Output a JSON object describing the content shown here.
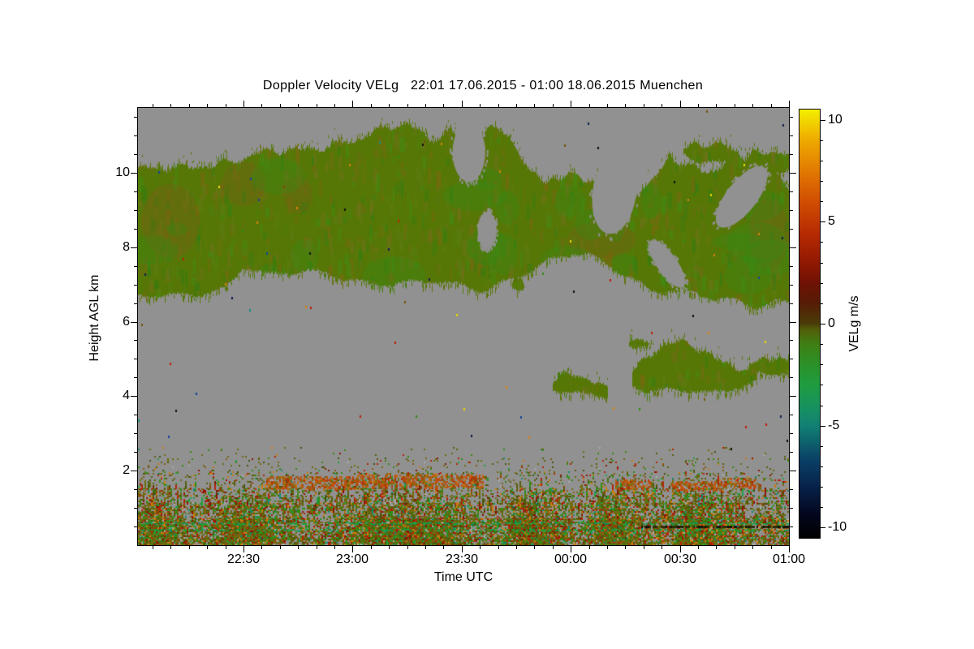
{
  "title": "Doppler Velocity VELg   22:01 17.06.2015 - 01:00 18.06.2015 Muenchen",
  "axes": {
    "x": {
      "label": "Time UTC",
      "range_min": [
        0,
        179
      ],
      "major_ticks": [
        {
          "min": 29,
          "label": "22:30"
        },
        {
          "min": 59,
          "label": "23:00"
        },
        {
          "min": 89,
          "label": "23:30"
        },
        {
          "min": 119,
          "label": "00:00"
        },
        {
          "min": 149,
          "label": "00:30"
        },
        {
          "min": 179,
          "label": "01:00"
        }
      ],
      "minor_step_min": 5,
      "minor_offset_min": 4
    },
    "y": {
      "label": "Height AGL km",
      "range_km": [
        0,
        11.74
      ],
      "major_ticks": [
        {
          "km": 2,
          "label": "2"
        },
        {
          "km": 4,
          "label": "4"
        },
        {
          "km": 6,
          "label": "6"
        },
        {
          "km": 8,
          "label": "8"
        },
        {
          "km": 10,
          "label": "10"
        }
      ],
      "minor_step_km": 0.5
    }
  },
  "colorbar": {
    "label": "VELg m/s",
    "range": [
      -10.5,
      10.5
    ],
    "major_ticks": [
      {
        "value": 10,
        "label": "10"
      },
      {
        "value": 5,
        "label": "5"
      },
      {
        "value": 0,
        "label": "0"
      },
      {
        "value": -5,
        "label": "-5"
      },
      {
        "value": -10,
        "label": "-10"
      }
    ],
    "minor_step": 1,
    "gradient_stops": [
      [
        -10.5,
        "#000000"
      ],
      [
        -9.3,
        "#03071f"
      ],
      [
        -8,
        "#07224a"
      ],
      [
        -6.7,
        "#0a3f66"
      ],
      [
        -5.5,
        "#0f6d6e"
      ],
      [
        -5,
        "#128074"
      ],
      [
        -4,
        "#17945c"
      ],
      [
        -3,
        "#1f9c40"
      ],
      [
        -2,
        "#2b9128"
      ],
      [
        -1,
        "#3f7f14"
      ],
      [
        -0.3,
        "#525f0a"
      ],
      [
        0,
        "#4a3c08"
      ],
      [
        1,
        "#561c06"
      ],
      [
        2,
        "#6f1204"
      ],
      [
        3.2,
        "#971a02"
      ],
      [
        4.5,
        "#b82c02"
      ],
      [
        6,
        "#d14e02"
      ],
      [
        7.5,
        "#e27a02"
      ],
      [
        9,
        "#eeaa00"
      ],
      [
        10,
        "#f2d800"
      ],
      [
        10.5,
        "#f4ee00"
      ]
    ]
  },
  "chart_data": {
    "type": "heatmap",
    "title": "Doppler Velocity VELg   22:01 17.06.2015 - 01:00 18.06.2015 Muenchen",
    "xlabel": "Time UTC",
    "ylabel": "Height AGL km",
    "value_label": "VELg m/s",
    "x_range_utc": [
      "22:01",
      "01:00"
    ],
    "y_range_km": [
      0,
      11.74
    ],
    "value_range_ms": [
      -10.5,
      10.5
    ],
    "nan_color": "#919191",
    "upper_cloud": {
      "t_min": [
        0,
        8,
        16,
        24,
        29,
        36,
        44,
        52,
        60,
        68,
        74,
        80,
        86,
        90,
        96,
        102,
        108,
        114,
        119,
        124,
        130,
        136,
        141,
        146,
        152,
        158,
        164,
        170,
        175,
        179
      ],
      "top_km": [
        10.0,
        10.1,
        10.25,
        10.3,
        10.35,
        10.5,
        10.6,
        10.8,
        10.9,
        11.1,
        11.3,
        10.9,
        11.25,
        10.6,
        11.2,
        10.9,
        9.9,
        9.6,
        9.5,
        9.9,
        10.0,
        9.3,
        9.6,
        10.45,
        10.2,
        10.1,
        10.45,
        10.1,
        9.9,
        9.6
      ],
      "bot_km": [
        6.65,
        6.6,
        6.75,
        6.95,
        7.55,
        7.2,
        7.25,
        7.3,
        7.15,
        7.05,
        7.0,
        7.0,
        6.95,
        6.95,
        6.9,
        7.2,
        7.4,
        7.6,
        7.75,
        7.7,
        7.5,
        7.2,
        6.9,
        6.85,
        6.7,
        6.55,
        6.5,
        6.45,
        6.6,
        6.6
      ]
    },
    "holes": [
      [
        91,
        10.55,
        4.5,
        0.8,
        0
      ],
      [
        96,
        8.45,
        2.6,
        0.5,
        0
      ],
      [
        131,
        9.45,
        6.0,
        1.1,
        8
      ],
      [
        145.5,
        7.55,
        2.8,
        0.75,
        -35
      ],
      [
        166,
        9.35,
        4.2,
        1.0,
        38
      ]
    ],
    "fragments": [
      [
        111,
        123,
        9.25,
        9.95
      ],
      [
        150,
        165,
        10.3,
        10.68
      ],
      [
        167,
        179,
        9.95,
        10.5
      ],
      [
        103,
        106,
        6.75,
        7.05
      ],
      [
        135,
        141,
        5.3,
        5.62
      ]
    ],
    "mid_patches": [
      {
        "t_min": [
          114,
          118,
          123,
          129
        ],
        "top_km": [
          4.35,
          4.5,
          4.45,
          4.2
        ],
        "bot_km": [
          4.15,
          4.1,
          4.1,
          4.1
        ]
      },
      {
        "t_min": [
          136,
          140,
          146,
          152,
          158,
          164,
          170
        ],
        "top_km": [
          4.55,
          5.0,
          5.35,
          5.45,
          5.1,
          4.9,
          4.5
        ],
        "bot_km": [
          4.2,
          4.05,
          4.1,
          4.2,
          4.15,
          4.3,
          4.35
        ]
      },
      {
        "t_min": [
          168,
          172,
          176,
          179
        ],
        "top_km": [
          4.75,
          5.0,
          5.05,
          4.9
        ],
        "bot_km": [
          4.55,
          4.5,
          4.55,
          4.6
        ]
      }
    ],
    "brown_regions": [
      [
        1,
        17,
        7.7,
        9.7
      ],
      [
        23,
        35,
        9.1,
        10.3
      ],
      [
        118,
        137,
        7.7,
        8.7
      ],
      [
        168,
        179,
        7.4,
        9.3
      ],
      [
        40,
        48,
        8.9,
        9.9
      ]
    ],
    "boundary_layer": {
      "density_bands": [
        [
          0.04,
          0.18,
          0.92
        ],
        [
          0.18,
          0.75,
          0.85
        ],
        [
          0.75,
          1.15,
          0.62
        ],
        [
          1.15,
          1.55,
          0.38
        ],
        [
          1.55,
          1.95,
          0.18
        ],
        [
          1.95,
          2.35,
          0.07
        ],
        [
          2.35,
          2.65,
          0.02
        ]
      ],
      "orange_streaks": [
        [
          35,
          60,
          1.55,
          1.85
        ],
        [
          60,
          95,
          1.6,
          1.9
        ],
        [
          131,
          141,
          1.55,
          1.8
        ],
        [
          146,
          160,
          1.5,
          1.75
        ],
        [
          160,
          170,
          1.6,
          1.85
        ]
      ],
      "green_row_km": [
        0.42,
        0.6
      ],
      "dark_row": [
        138,
        179,
        0.52
      ]
    },
    "palettes": {
      "cloud_base": "#567706",
      "cloud_texture": [
        "#4f7c06",
        "#5d7a10",
        "#3f8c12",
        "#2f7d0e",
        "#6f6b10",
        "#7c660e",
        "#567706",
        "#72701a"
      ],
      "bl_colors": [
        [
          "#6f6b0e",
          26
        ],
        [
          "#5a5e0a",
          16
        ],
        [
          "#2f8c14",
          13
        ],
        [
          "#1fa044",
          5
        ],
        [
          "#b22408",
          9
        ],
        [
          "#8c1404",
          5
        ],
        [
          "#cc7a10",
          7
        ],
        [
          "#8a5a14",
          7
        ],
        [
          "#13887a",
          2
        ],
        [
          "#aaaaaa",
          2
        ],
        [
          "#46530a",
          8
        ]
      ],
      "orange_streak_colors": [
        "#c06a10",
        "#b0571a",
        "#c44a0c",
        "#8a6a10",
        "#a83c08"
      ],
      "speckle_colors": [
        "#0c1c4e",
        "#14449c",
        "#101010",
        "#c01c08",
        "#12907e",
        "#e8d400",
        "#d4820a",
        "#2f8c14",
        "#75520a"
      ]
    }
  }
}
